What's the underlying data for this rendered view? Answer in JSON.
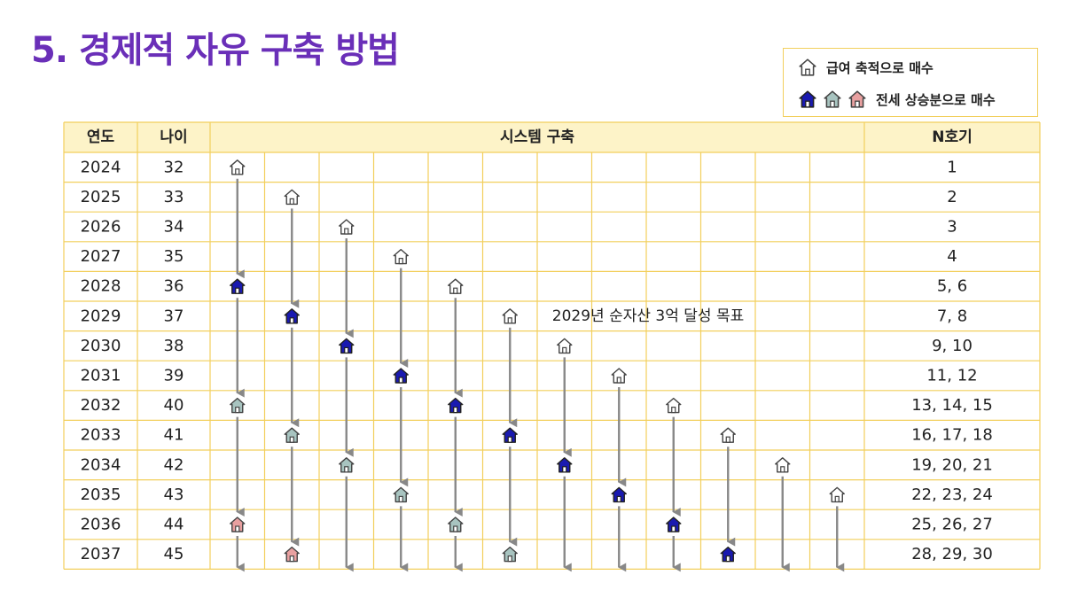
{
  "title": "5. 경제적 자유 구축 방법",
  "legend": {
    "salary_label": "급여 축적으로 매수",
    "jeonse_label": "전세 상승분으로 매수"
  },
  "headers": {
    "year": "연도",
    "age": "나이",
    "system": "시스템 구축",
    "n": "N호기"
  },
  "goal_note": "2029년 순자산 3억 달성 목표",
  "colors": {
    "header_bg": "#fdf3c8",
    "border": "#f2cf5c",
    "title": "#6a2fb8",
    "arrow": "#888888",
    "salary_house": "#ffffff",
    "jeonse_1": "#1a1ab0",
    "jeonse_2": "#a8c4c0",
    "jeonse_3": "#e8a0a0"
  },
  "rows": [
    {
      "year": "2024",
      "age": "32",
      "n": "1"
    },
    {
      "year": "2025",
      "age": "33",
      "n": "2"
    },
    {
      "year": "2026",
      "age": "34",
      "n": "3"
    },
    {
      "year": "2027",
      "age": "35",
      "n": "4"
    },
    {
      "year": "2028",
      "age": "36",
      "n": "5, 6"
    },
    {
      "year": "2029",
      "age": "37",
      "n": "7, 8"
    },
    {
      "year": "2030",
      "age": "38",
      "n": "9, 10"
    },
    {
      "year": "2031",
      "age": "39",
      "n": "11, 12"
    },
    {
      "year": "2032",
      "age": "40",
      "n": "13, 14, 15"
    },
    {
      "year": "2033",
      "age": "41",
      "n": "16, 17, 18"
    },
    {
      "year": "2034",
      "age": "42",
      "n": "19, 20, 21"
    },
    {
      "year": "2035",
      "age": "43",
      "n": "22, 23, 24"
    },
    {
      "year": "2036",
      "age": "44",
      "n": "25, 26, 27"
    },
    {
      "year": "2037",
      "age": "45",
      "n": "28, 29, 30"
    }
  ],
  "chains": [
    {
      "start_row": 0,
      "houses": [
        {
          "row": 0,
          "type": "salary"
        },
        {
          "row": 4,
          "type": "jeonse_1"
        },
        {
          "row": 8,
          "type": "jeonse_2"
        },
        {
          "row": 12,
          "type": "jeonse_3"
        }
      ]
    },
    {
      "start_row": 1,
      "houses": [
        {
          "row": 1,
          "type": "salary"
        },
        {
          "row": 5,
          "type": "jeonse_1"
        },
        {
          "row": 9,
          "type": "jeonse_2"
        },
        {
          "row": 13,
          "type": "jeonse_3"
        }
      ]
    },
    {
      "start_row": 2,
      "houses": [
        {
          "row": 2,
          "type": "salary"
        },
        {
          "row": 6,
          "type": "jeonse_1"
        },
        {
          "row": 10,
          "type": "jeonse_2"
        }
      ]
    },
    {
      "start_row": 3,
      "houses": [
        {
          "row": 3,
          "type": "salary"
        },
        {
          "row": 7,
          "type": "jeonse_1"
        },
        {
          "row": 11,
          "type": "jeonse_2"
        }
      ]
    },
    {
      "start_row": 4,
      "houses": [
        {
          "row": 4,
          "type": "salary"
        },
        {
          "row": 8,
          "type": "jeonse_1"
        },
        {
          "row": 12,
          "type": "jeonse_2"
        }
      ]
    },
    {
      "start_row": 5,
      "houses": [
        {
          "row": 5,
          "type": "salary"
        },
        {
          "row": 9,
          "type": "jeonse_1"
        },
        {
          "row": 13,
          "type": "jeonse_2"
        }
      ]
    },
    {
      "start_row": 6,
      "houses": [
        {
          "row": 6,
          "type": "salary"
        },
        {
          "row": 10,
          "type": "jeonse_1"
        }
      ]
    },
    {
      "start_row": 7,
      "houses": [
        {
          "row": 7,
          "type": "salary"
        },
        {
          "row": 11,
          "type": "jeonse_1"
        }
      ]
    },
    {
      "start_row": 8,
      "houses": [
        {
          "row": 8,
          "type": "salary"
        },
        {
          "row": 12,
          "type": "jeonse_1"
        }
      ]
    },
    {
      "start_row": 9,
      "houses": [
        {
          "row": 9,
          "type": "salary"
        },
        {
          "row": 13,
          "type": "jeonse_1"
        }
      ]
    },
    {
      "start_row": 10,
      "houses": [
        {
          "row": 10,
          "type": "salary"
        }
      ]
    },
    {
      "start_row": 11,
      "houses": [
        {
          "row": 11,
          "type": "salary"
        }
      ]
    }
  ]
}
